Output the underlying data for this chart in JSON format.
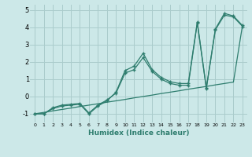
{
  "xlabel": "Humidex (Indice chaleur)",
  "bg_color": "#cce8e8",
  "grid_color": "#aacccc",
  "line_color": "#2e7d6e",
  "xlim": [
    -0.5,
    23.5
  ],
  "ylim": [
    -1.5,
    5.3
  ],
  "xticks": [
    0,
    1,
    2,
    3,
    4,
    5,
    6,
    7,
    8,
    9,
    10,
    11,
    12,
    13,
    14,
    15,
    16,
    17,
    18,
    19,
    20,
    21,
    22,
    23
  ],
  "yticks": [
    -1,
    0,
    1,
    2,
    3,
    4,
    5
  ],
  "line1_x": [
    0,
    1,
    2,
    3,
    4,
    5,
    6,
    7,
    8,
    9,
    10,
    11,
    12,
    13,
    14,
    15,
    16,
    17,
    18,
    19,
    20,
    21,
    22,
    23
  ],
  "line1_y": [
    -1.0,
    -1.0,
    -0.7,
    -0.55,
    -0.5,
    -0.45,
    -1.0,
    -0.55,
    -0.25,
    0.25,
    1.5,
    1.75,
    2.5,
    1.55,
    1.1,
    0.85,
    0.75,
    0.75,
    4.3,
    0.5,
    3.9,
    4.8,
    4.65,
    4.1
  ],
  "line2_x": [
    0,
    1,
    2,
    3,
    4,
    5,
    6,
    7,
    8,
    9,
    10,
    11,
    12,
    13,
    14,
    15,
    16,
    17,
    18,
    19,
    20,
    21,
    22,
    23
  ],
  "line2_y": [
    -1.0,
    -1.0,
    -0.65,
    -0.5,
    -0.45,
    -0.4,
    -0.95,
    -0.5,
    -0.2,
    0.2,
    1.35,
    1.55,
    2.25,
    1.45,
    1.0,
    0.75,
    0.65,
    0.65,
    4.25,
    0.45,
    3.85,
    4.7,
    4.6,
    4.05
  ],
  "line3_x": [
    0,
    1,
    2,
    3,
    4,
    5,
    6,
    7,
    8,
    9,
    10,
    11,
    12,
    13,
    14,
    15,
    16,
    17,
    18,
    19,
    20,
    21,
    22,
    23
  ],
  "line3_y": [
    -1.0,
    -0.92,
    -0.83,
    -0.75,
    -0.67,
    -0.58,
    -0.5,
    -0.42,
    -0.33,
    -0.25,
    -0.17,
    -0.08,
    0.0,
    0.08,
    0.17,
    0.25,
    0.33,
    0.42,
    0.5,
    0.58,
    0.67,
    0.75,
    0.83,
    4.1
  ]
}
